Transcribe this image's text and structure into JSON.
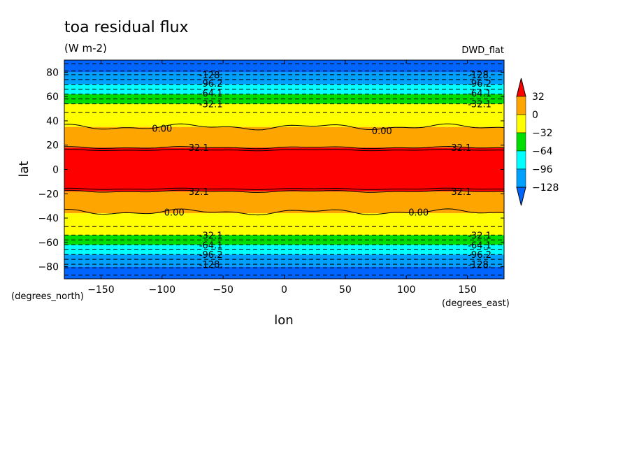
{
  "chart_data": {
    "type": "heatmap",
    "title": "toa residual flux",
    "units": "(W m-2)",
    "dataset": "DWD_flat",
    "xlabel": "lon",
    "ylabel": "lat",
    "x_units": "(degrees_east)",
    "y_units": "(degrees_north)",
    "xlim": [
      -180,
      180
    ],
    "ylim": [
      -90,
      90
    ],
    "x_ticks": [
      -150,
      -100,
      -50,
      0,
      50,
      100,
      150
    ],
    "y_ticks": [
      -80,
      -60,
      -40,
      -20,
      0,
      20,
      40,
      60,
      80
    ],
    "grid": false,
    "legend": "right",
    "colorbar": {
      "labels": [
        "32",
        "0",
        "-32",
        "-64",
        "-96",
        "-128"
      ],
      "colors": [
        "#ff0000",
        "#ffa500",
        "#ffff00",
        "#00dd00",
        "#00ffff",
        "#00a0ff",
        "#0064ff"
      ]
    },
    "bands": [
      {
        "lat_min": -90,
        "lat_max": -80,
        "color": "#0064ff"
      },
      {
        "lat_min": -80,
        "lat_max": -70,
        "color": "#00a0ff"
      },
      {
        "lat_min": -70,
        "lat_max": -62,
        "color": "#00ffff"
      },
      {
        "lat_min": -62,
        "lat_max": -54,
        "color": "#00dd00"
      },
      {
        "lat_min": -54,
        "lat_max": -36,
        "color": "#ffff00"
      },
      {
        "lat_min": -36,
        "lat_max": -18,
        "color": "#ffa500"
      },
      {
        "lat_min": -18,
        "lat_max": 18,
        "color": "#ff0000"
      },
      {
        "lat_min": 18,
        "lat_max": 35,
        "color": "#ffa500"
      },
      {
        "lat_min": 35,
        "lat_max": 54,
        "color": "#ffff00"
      },
      {
        "lat_min": 54,
        "lat_max": 62,
        "color": "#00dd00"
      },
      {
        "lat_min": 62,
        "lat_max": 70,
        "color": "#00ffff"
      },
      {
        "lat_min": 70,
        "lat_max": 80,
        "color": "#00a0ff"
      },
      {
        "lat_min": 80,
        "lat_max": 90,
        "color": "#0064ff"
      }
    ],
    "contour_labels": [
      {
        "text": "-128.",
        "lon": -60,
        "lat": 78
      },
      {
        "text": "-128.",
        "lon": 160,
        "lat": 78
      },
      {
        "text": "-96.2",
        "lon": -60,
        "lat": 71
      },
      {
        "text": "-96.2",
        "lon": 160,
        "lat": 71
      },
      {
        "text": "-64.1",
        "lon": -60,
        "lat": 63
      },
      {
        "text": "-64.1",
        "lon": 160,
        "lat": 63
      },
      {
        "text": "-32.1",
        "lon": -60,
        "lat": 54
      },
      {
        "text": "-32.1",
        "lon": 160,
        "lat": 54
      },
      {
        "text": "0.00",
        "lon": -100,
        "lat": 34
      },
      {
        "text": "0.00",
        "lon": 80,
        "lat": 32
      },
      {
        "text": "32.1",
        "lon": -70,
        "lat": 18
      },
      {
        "text": "32.1",
        "lon": 145,
        "lat": 18
      },
      {
        "text": "32.1",
        "lon": -70,
        "lat": -18
      },
      {
        "text": "32.1",
        "lon": 145,
        "lat": -18
      },
      {
        "text": "0.00",
        "lon": -90,
        "lat": -35
      },
      {
        "text": "0.00",
        "lon": 110,
        "lat": -35
      },
      {
        "text": "-32.1",
        "lon": -60,
        "lat": -54
      },
      {
        "text": "-32.1",
        "lon": 160,
        "lat": -54
      },
      {
        "text": "-64.1",
        "lon": -60,
        "lat": -62
      },
      {
        "text": "-64.1",
        "lon": 160,
        "lat": -62
      },
      {
        "text": "-96.2",
        "lon": -60,
        "lat": -70
      },
      {
        "text": "-96.2",
        "lon": 160,
        "lat": -70
      },
      {
        "text": "-128.",
        "lon": -60,
        "lat": -78
      },
      {
        "text": "-128.",
        "lon": 160,
        "lat": -78
      }
    ],
    "dashed_contour_lats": [
      -87,
      -81,
      -78,
      -74,
      -70,
      -66,
      -62,
      -58,
      -54,
      -47,
      47,
      54,
      58,
      62,
      66,
      70,
      74,
      78,
      81,
      87
    ]
  }
}
